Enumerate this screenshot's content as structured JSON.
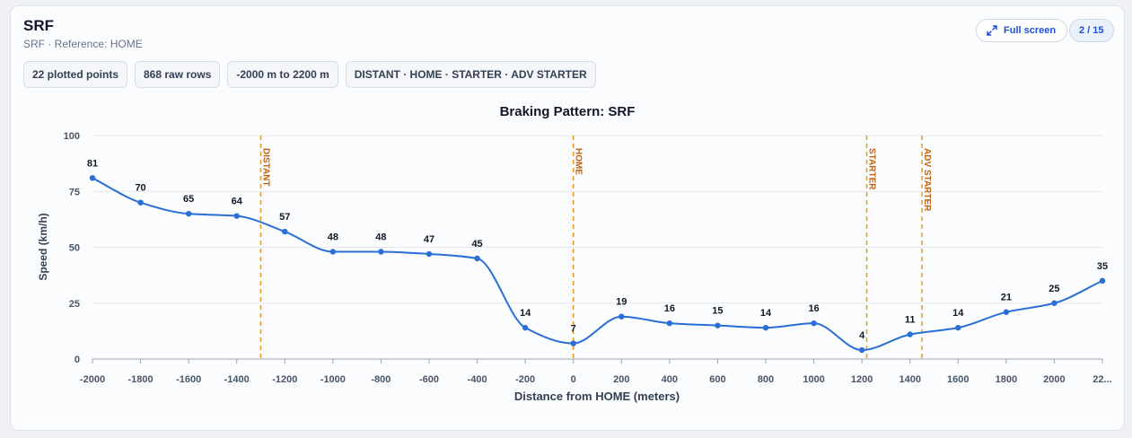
{
  "header": {
    "title": "SRF",
    "subtitle": "SRF · Reference: HOME",
    "badges": [
      "22 plotted points",
      "868 raw rows",
      "-2000 m to 2200 m",
      "DISTANT · HOME · STARTER · ADV STARTER"
    ],
    "fullscreen_label": "Full screen",
    "fullscreen_icon": "expand-icon",
    "page_indicator": "2 / 15"
  },
  "colors": {
    "line": "#2a6fd6",
    "marker_line": "#e3a12b",
    "marker_text": "#c2620f",
    "grid": "#e5e7eb",
    "accent": "#1d4ed8"
  },
  "chart_data": {
    "type": "line",
    "title": "Braking Pattern: SRF",
    "xlabel": "Distance from HOME (meters)",
    "ylabel": "Speed (km/h)",
    "xlim": [
      -2000,
      2200
    ],
    "ylim": [
      0,
      100
    ],
    "grid": "horizontal",
    "x_ticks": [
      "-2000",
      "-1800",
      "-1600",
      "-1400",
      "-1200",
      "-1000",
      "-800",
      "-600",
      "-400",
      "-200",
      "0",
      "200",
      "400",
      "600",
      "800",
      "1000",
      "1200",
      "1400",
      "1600",
      "1800",
      "2000",
      "22..."
    ],
    "y_ticks": [
      "0",
      "25",
      "50",
      "75",
      "100"
    ],
    "series": [
      {
        "x": [
          -2000,
          -1800,
          -1600,
          -1400,
          -1200,
          -1000,
          -800,
          -600,
          -400,
          -200,
          0,
          200,
          400,
          600,
          800,
          1000,
          1200,
          1400,
          1600,
          1800,
          2000,
          2200
        ],
        "values": [
          81,
          70,
          65,
          64,
          57,
          48,
          48,
          47,
          45,
          14,
          7,
          19,
          16,
          15,
          14,
          16,
          4,
          11,
          14,
          21,
          25,
          35
        ]
      }
    ],
    "markers": [
      {
        "x": -1300,
        "label": "DISTANT"
      },
      {
        "x": 0,
        "label": "HOME"
      },
      {
        "x": 1220,
        "label": "STARTER"
      },
      {
        "x": 1450,
        "label": "ADV STARTER"
      }
    ]
  }
}
